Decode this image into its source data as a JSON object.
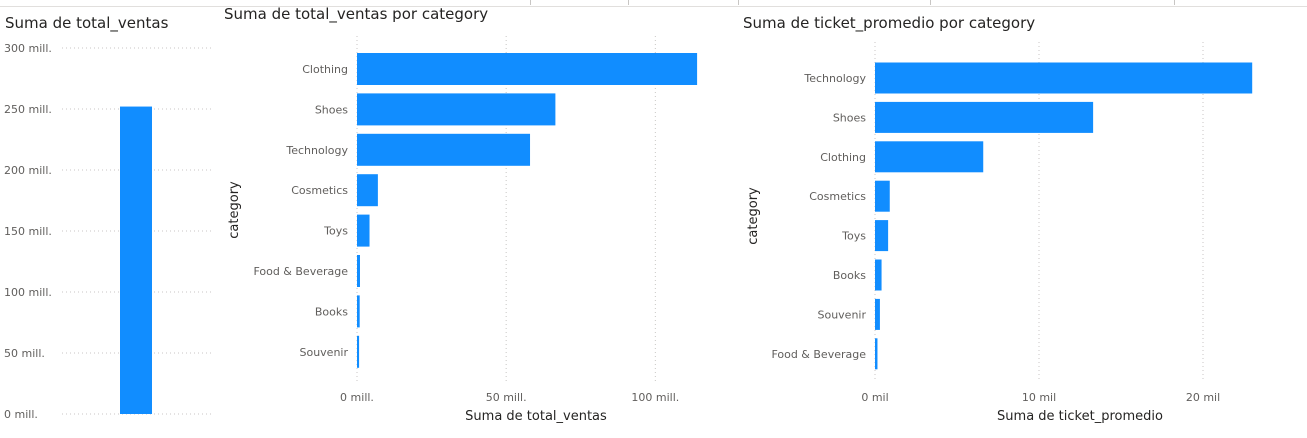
{
  "colors": {
    "bar": "#118dff",
    "grid": "#c8c6c4",
    "text": "#605e5c",
    "title": "#252423"
  },
  "charts": {
    "total": {
      "title": "Suma de total_ventas"
    },
    "by_category": {
      "title": "Suma de total_ventas por category",
      "xlabel": "Suma de total_ventas",
      "ylabel": "category"
    },
    "ticket": {
      "title": "Suma de ticket_promedio por category",
      "xlabel": "Suma de ticket_promedio",
      "ylabel": "category"
    }
  },
  "chart_data": [
    {
      "type": "bar",
      "orientation": "vertical",
      "title": "Suma de total_ventas",
      "categories": [
        ""
      ],
      "values": [
        252000000
      ],
      "ylim": [
        0,
        300000000
      ],
      "yticks": [
        0,
        50000000,
        100000000,
        150000000,
        200000000,
        250000000,
        300000000
      ],
      "ytick_labels": [
        "0 mill.",
        "50 mill.",
        "100 mill.",
        "150 mill.",
        "200 mill.",
        "250 mill.",
        "300 mill."
      ],
      "grid": true
    },
    {
      "type": "bar",
      "orientation": "horizontal",
      "title": "Suma de total_ventas por category",
      "xlabel": "Suma de total_ventas",
      "ylabel": "category",
      "categories": [
        "Clothing",
        "Shoes",
        "Technology",
        "Cosmetics",
        "Toys",
        "Food & Beverage",
        "Books",
        "Souvenir"
      ],
      "values": [
        114000000,
        66500000,
        58000000,
        7000000,
        4200000,
        1000000,
        900000,
        700000
      ],
      "xlim": [
        0,
        120000000
      ],
      "xticks": [
        0,
        50000000,
        100000000
      ],
      "xtick_labels": [
        "0 mill.",
        "50 mill.",
        "100 mill."
      ],
      "grid": true
    },
    {
      "type": "bar",
      "orientation": "horizontal",
      "title": "Suma de ticket_promedio por category",
      "xlabel": "Suma de ticket_promedio",
      "ylabel": "category",
      "categories": [
        "Technology",
        "Shoes",
        "Clothing",
        "Cosmetics",
        "Toys",
        "Books",
        "Souvenir",
        "Food & Beverage"
      ],
      "values": [
        23000,
        13300,
        6600,
        900,
        800,
        400,
        300,
        150
      ],
      "xlim": [
        0,
        25000
      ],
      "xticks": [
        0,
        10000,
        20000
      ],
      "xtick_labels": [
        "0 mil",
        "10 mil",
        "20 mil"
      ],
      "grid": true
    }
  ]
}
